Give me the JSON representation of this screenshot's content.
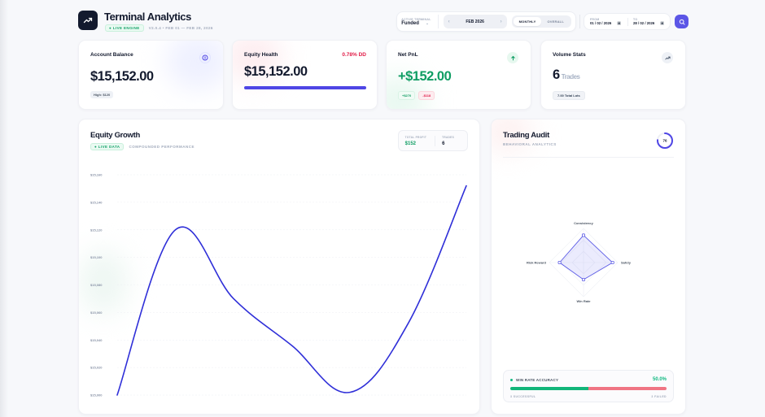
{
  "header": {
    "title": "Terminal Analytics",
    "live_badge": "● LIVE ENGINE",
    "version_range": "V2.0.4 • FEB 01 — FEB 28, 2026",
    "active_terminal_label": "ACTIVE TERMINAL",
    "active_terminal_value": "Funded",
    "month_prev_icon": "‹",
    "month_label": "FEB 2026",
    "month_next_icon": "›",
    "view_toggle": [
      {
        "label": "MONTHLY",
        "active": true
      },
      {
        "label": "OVERALL",
        "active": false
      }
    ],
    "from_label": "FROM",
    "from_value": "01 / 02 / 2026",
    "to_label": "TO",
    "to_value": "28 / 02 / 2026",
    "search_icon": "search-icon"
  },
  "stats": {
    "account_balance": {
      "title": "Account Balance",
      "value": "$15,152.00",
      "high_badge": "High: $120",
      "icon": "dollar-coin-icon"
    },
    "equity_health": {
      "title": "Equity Health",
      "drawdown": "0.78% DD",
      "value": "$15,152.00",
      "health_percent": 100
    },
    "net_pnl": {
      "title": "Net PnL",
      "value": "+$152.00",
      "gain_badge": "+$270",
      "loss_badge": "-$118",
      "icon": "arrow-up-icon"
    },
    "volume_stats": {
      "title": "Volume Stats",
      "trades_count": "6",
      "trades_word": "Trades",
      "lots_badge": "7.00 Total Lots",
      "icon": "trending-up-icon"
    }
  },
  "equity_growth": {
    "title": "Equity Growth",
    "live_badge": "● LIVE DATA",
    "subtitle": "COMPOUNDED PERFORMANCE",
    "kpis": [
      {
        "label": "TOTAL PROFIT",
        "value": "$152"
      },
      {
        "label": "TRADES",
        "value": "6"
      }
    ]
  },
  "chart_data": {
    "type": "line",
    "title": "Equity Growth",
    "xlabel": "",
    "ylabel": "",
    "x": [
      0,
      1,
      2,
      3,
      4,
      5,
      6
    ],
    "values": [
      15000,
      15120,
      15070,
      15036,
      15002,
      15052,
      15152
    ],
    "y_ticks": [
      "$15,160",
      "$15,140",
      "$15,120",
      "$15,100",
      "$15,080",
      "$15,060",
      "$15,040",
      "$15,020",
      "$15,000"
    ],
    "ylim": [
      15000,
      15160
    ],
    "grid": true,
    "line_color": "#2f2fd8"
  },
  "trading_audit": {
    "title": "Trading Audit",
    "subtitle": "BEHAVIORAL ANALYTICS",
    "score": "76",
    "score_percent": 76,
    "radar": {
      "axes": [
        "Consistency",
        "Safety",
        "Win Rate",
        "Risk Reward"
      ],
      "values": [
        80,
        85,
        50,
        70
      ],
      "max": 100
    },
    "win_rate": {
      "label": "WIN RATE ACCURACY",
      "value": "50.0%",
      "percent": 50,
      "successful": "3 SUCCESSFUL",
      "failed": "3 FAILED"
    }
  },
  "colors": {
    "accent": "#4f46e5",
    "positive": "#10b981",
    "negative": "#e11d48",
    "dark": "#131a2e"
  }
}
